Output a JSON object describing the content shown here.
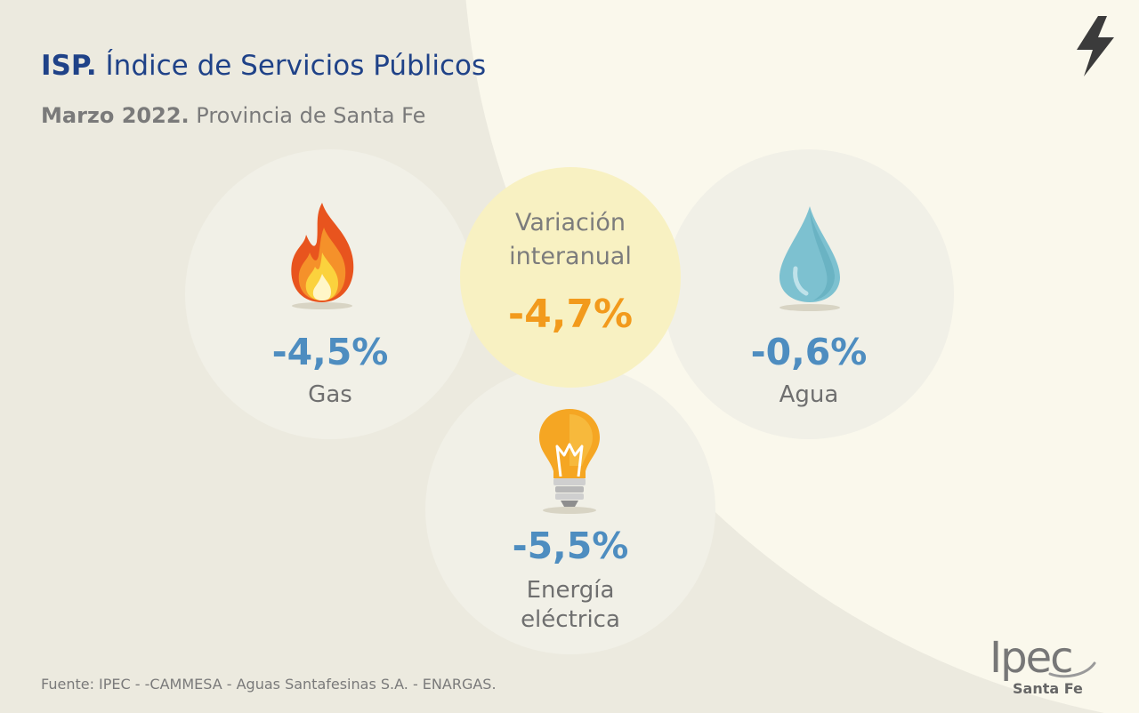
{
  "title": {
    "bold": "ISP.",
    "rest": " Índice de Servicios Públicos"
  },
  "subtitle": {
    "bold": "Marzo 2022.",
    "rest": " Provincia de Santa Fe"
  },
  "variacion": {
    "label_line1": "Variación",
    "label_line2": "interanual",
    "value": "-4,7%"
  },
  "gas": {
    "value": "-4,5%",
    "label": "Gas"
  },
  "agua": {
    "value": "-0,6%",
    "label": "Agua"
  },
  "energia": {
    "value": "-5,5%",
    "label_line1": "Energía",
    "label_line2": "eléctrica"
  },
  "footer": "Fuente: IPEC - -CAMMESA - Aguas Santafesinas S.A. - ENARGAS.",
  "logo": {
    "name": "Ipec",
    "sub": "Santa Fe"
  },
  "icons": {
    "gas": "flame-icon",
    "agua": "water-drop-icon",
    "energia": "light-bulb-icon",
    "corner": "lightning-bolt-icon"
  },
  "colors": {
    "title": "#1f4288",
    "value_blue": "#4e8dc0",
    "value_orange": "#f29a1c",
    "highlight_circle": "#f8f1c2"
  }
}
